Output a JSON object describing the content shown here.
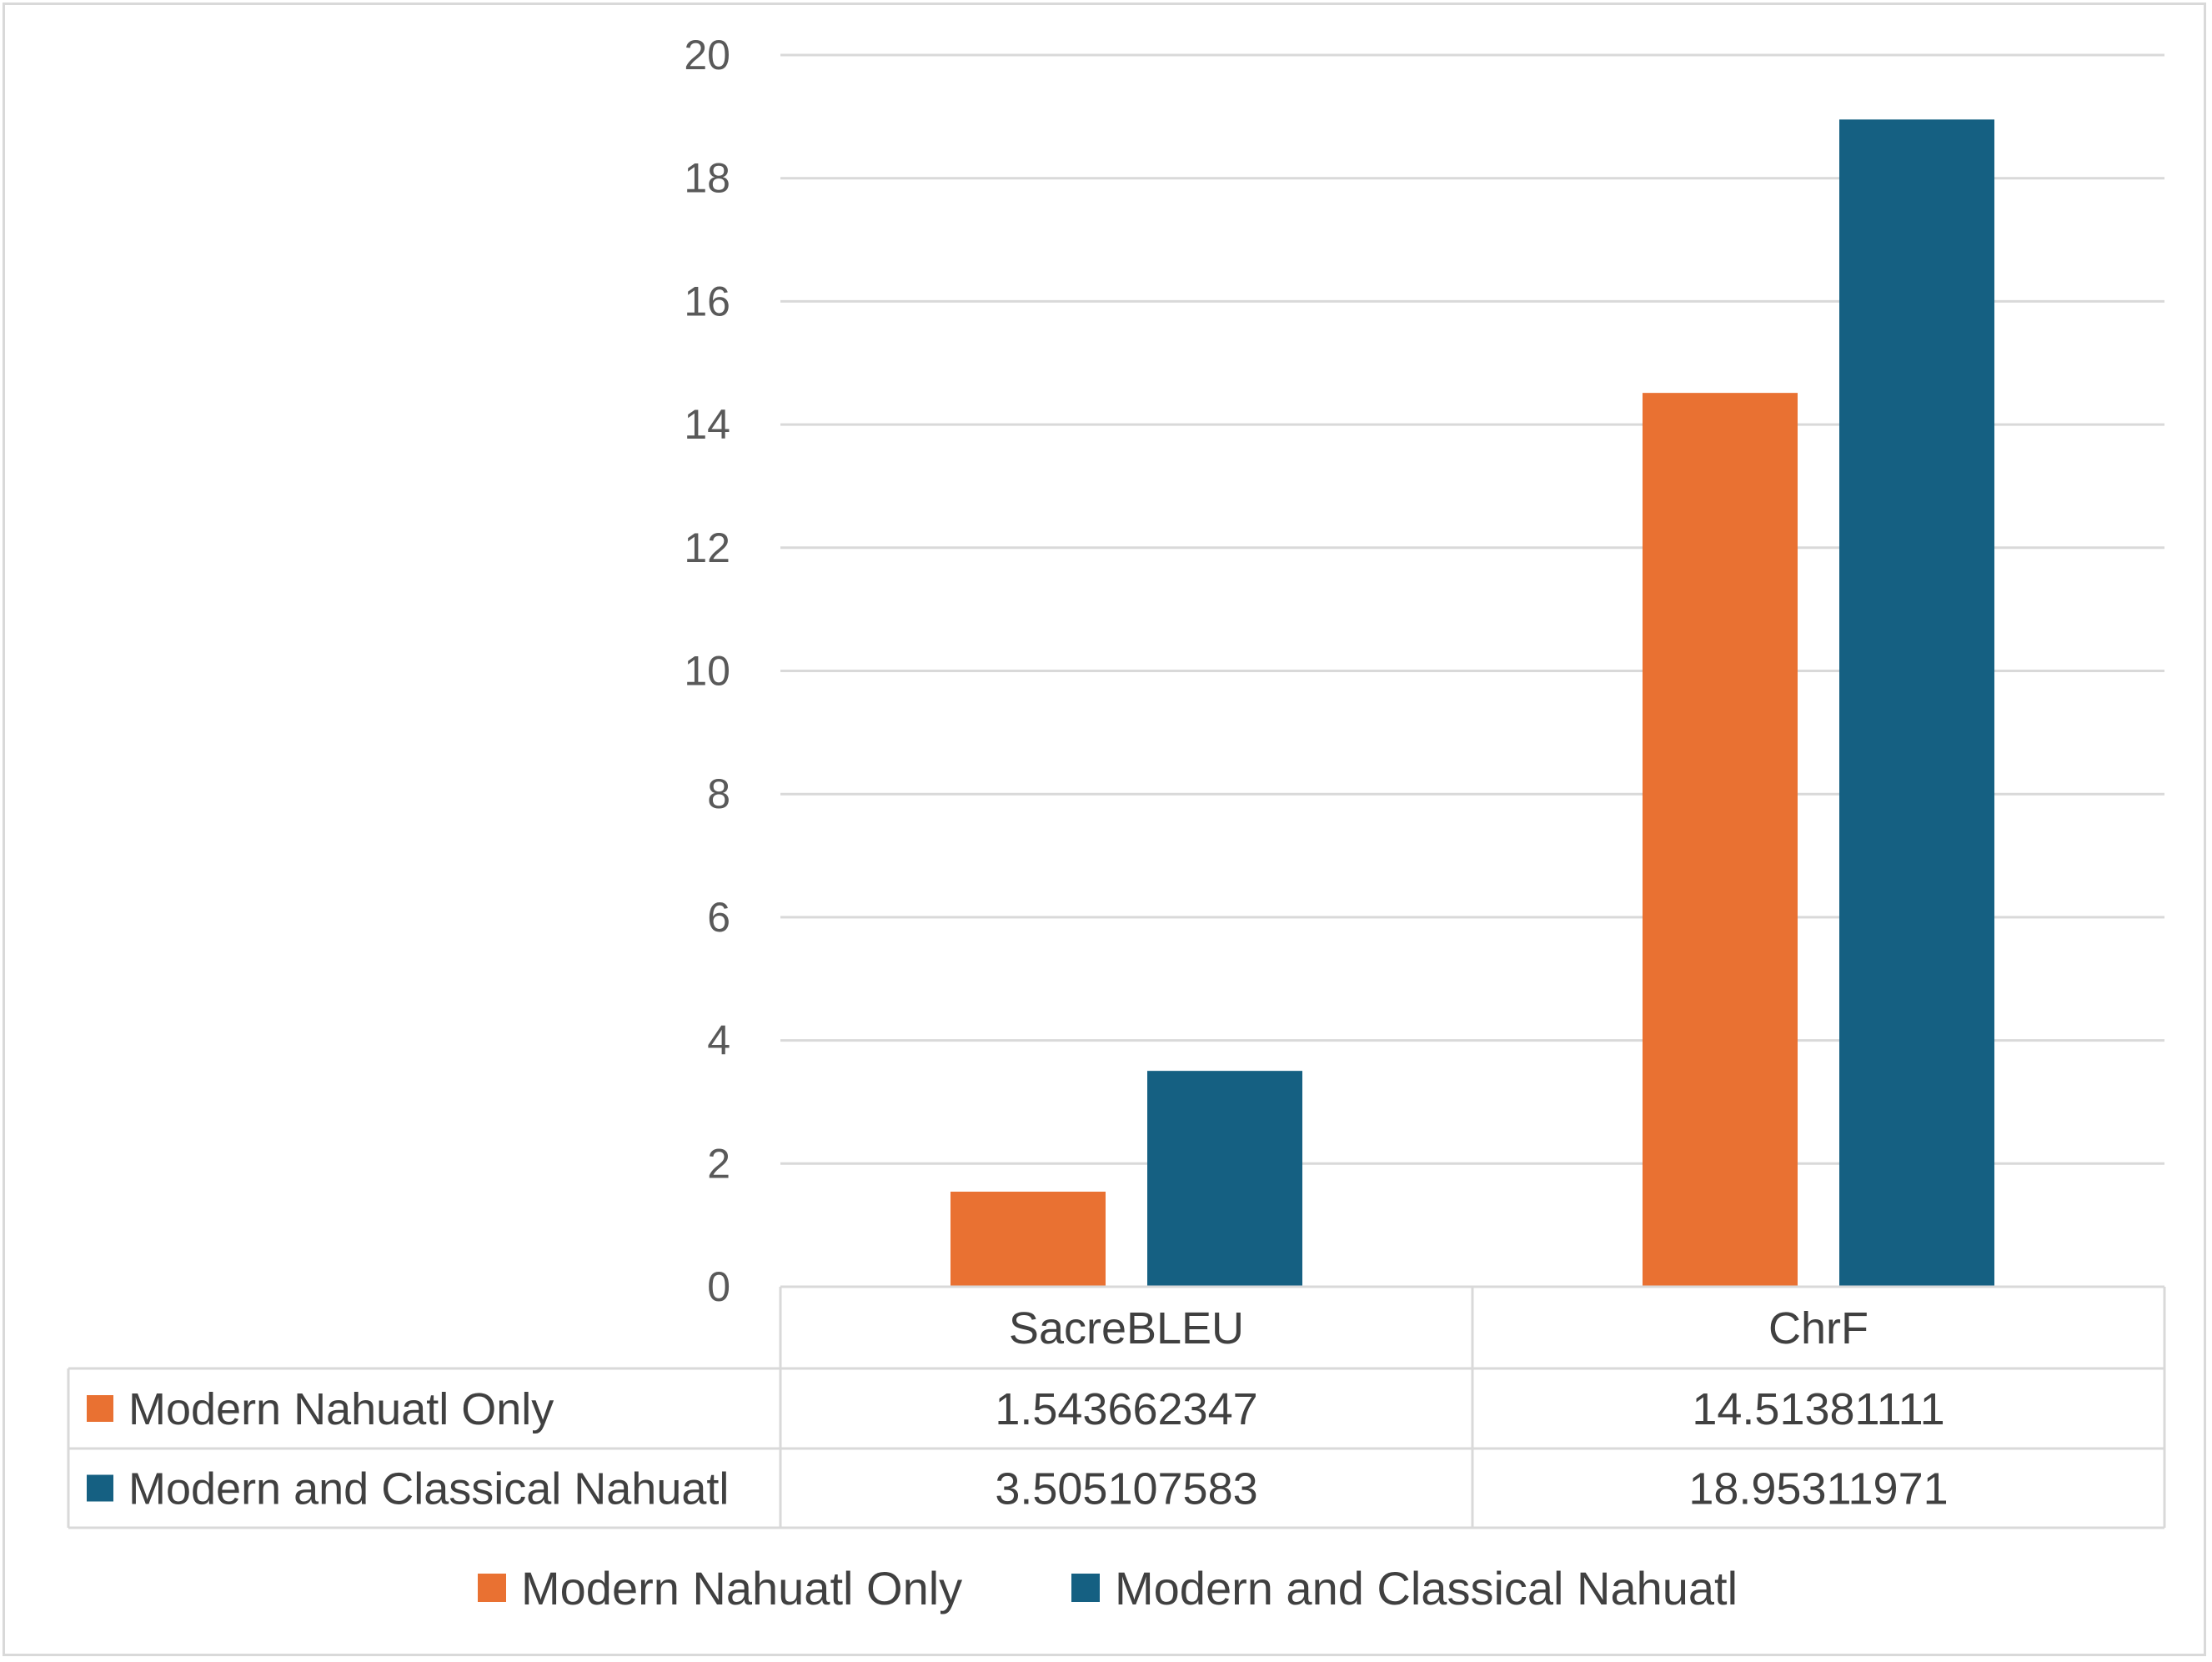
{
  "chart_data": {
    "type": "bar",
    "categories": [
      "SacreBLEU",
      "ChrF"
    ],
    "series": [
      {
        "name": "Modern Nahuatl Only",
        "color": "#E97132",
        "values": [
          1.543662347,
          14.51381111
        ],
        "labels": [
          "1.543662347",
          "14.51381111"
        ]
      },
      {
        "name": "Modern and Classical Nahuatl",
        "color": "#156082",
        "values": [
          3.505107583,
          18.95311971
        ],
        "labels": [
          "3.505107583",
          "18.95311971"
        ]
      }
    ],
    "yticks": [
      "0",
      "2",
      "4",
      "6",
      "8",
      "10",
      "12",
      "14",
      "16",
      "18",
      "20"
    ],
    "ylim": [
      0,
      20
    ],
    "grid": true,
    "data_table": true,
    "legend_position": "bottom"
  }
}
